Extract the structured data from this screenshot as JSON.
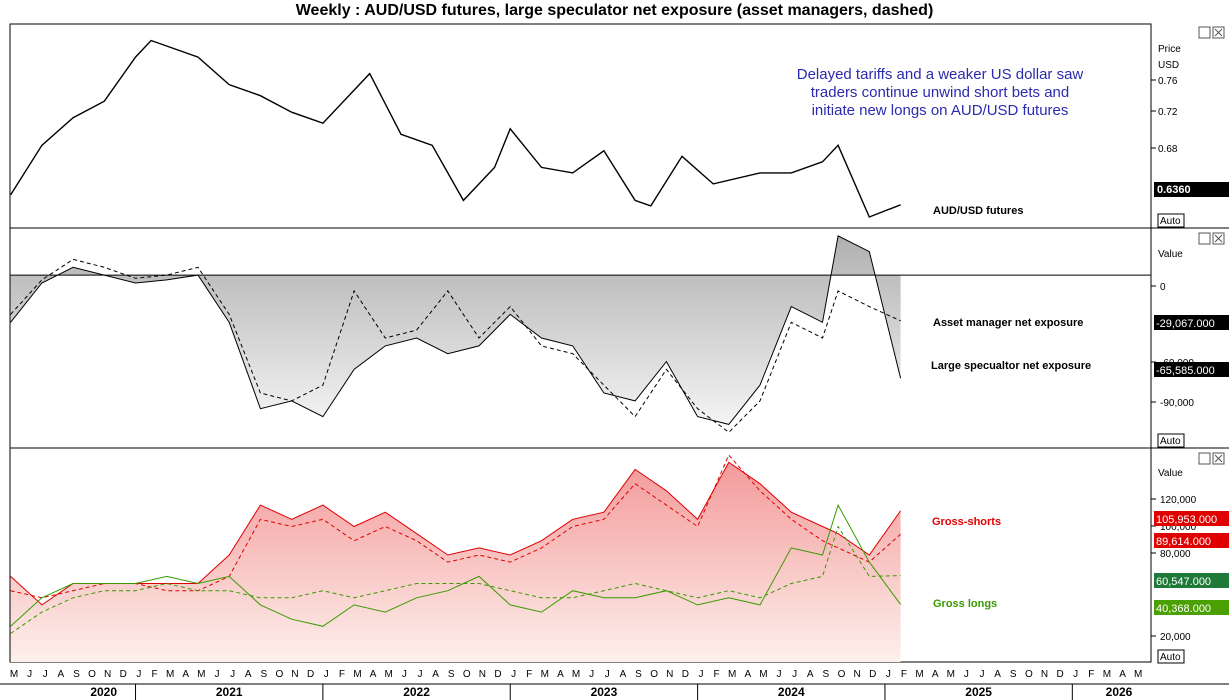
{
  "title": "Weekly : AUD/USD futures, large speculator net exposure (asset managers, dashed)",
  "annotation": [
    "Delayed tariffs and a weaker US dollar saw",
    "traders continue unwind short bets and",
    "initiate new longs on AUD/USD futures"
  ],
  "colors": {
    "annotation": "#2b2bb0",
    "shorts": "#e00000",
    "longs": "#3a9a00",
    "net_fill": "#bdbdbd",
    "price": "#000000"
  },
  "x_axis": {
    "months": [
      "M",
      "J",
      "J",
      "A",
      "S",
      "O",
      "N",
      "D",
      "J",
      "F",
      "M",
      "A",
      "M",
      "J",
      "J",
      "A",
      "S",
      "O",
      "N",
      "D",
      "J",
      "F",
      "M",
      "A",
      "M",
      "J",
      "J",
      "A",
      "S",
      "O",
      "N",
      "D",
      "J",
      "F",
      "M",
      "A",
      "M",
      "J",
      "J",
      "A",
      "S",
      "O",
      "N",
      "D",
      "J",
      "F",
      "M",
      "A",
      "M",
      "J",
      "J",
      "A",
      "S",
      "O",
      "N",
      "D",
      "J",
      "F",
      "M",
      "A",
      "M",
      "J",
      "J",
      "A",
      "S",
      "O",
      "N",
      "D",
      "J",
      "F",
      "M",
      "A",
      "M"
    ],
    "years": [
      "2020",
      "2021",
      "2022",
      "2023",
      "2024",
      "2025",
      "2026"
    ]
  },
  "panels": {
    "price": {
      "axis_title": [
        "Price",
        "USD"
      ],
      "ticks": [
        "0.76",
        "0.72",
        "0.68"
      ],
      "last_value": "0.6360",
      "series_label": "AUD/USD futures",
      "auto": "Auto"
    },
    "net": {
      "axis_title": "Value",
      "ticks": [
        "0",
        "-60,000",
        "-90,000"
      ],
      "labels": [
        "Asset manager net exposure",
        "Large specualtor net exposure"
      ],
      "values": [
        "-29,067.000",
        "-65,585.000"
      ],
      "auto": "Auto"
    },
    "gross": {
      "axis_title": "Value",
      "ticks": [
        "120,000",
        "100,000",
        "80,000",
        "20,000"
      ],
      "labels": [
        "Gross-shorts",
        "Gross longs"
      ],
      "values": [
        "105,953.000",
        "89,614.000",
        "60,547.000",
        "40,368.000"
      ],
      "auto": "Auto"
    }
  },
  "chart_data": [
    {
      "type": "line",
      "title": "AUD/USD futures",
      "ylabel": "Price USD",
      "ylim": [
        0.615,
        0.8
      ],
      "x": [
        "2020-05",
        "2020-07",
        "2020-09",
        "2020-11",
        "2021-01",
        "2021-02",
        "2021-05",
        "2021-07",
        "2021-09",
        "2021-11",
        "2022-01",
        "2022-04",
        "2022-06",
        "2022-08",
        "2022-10",
        "2022-12",
        "2023-01",
        "2023-03",
        "2023-05",
        "2023-07",
        "2023-09",
        "2023-10",
        "2023-12",
        "2024-02",
        "2024-05",
        "2024-07",
        "2024-09",
        "2024-10",
        "2024-12",
        "2025-02"
      ],
      "series": [
        {
          "values": [
            0.645,
            0.69,
            0.715,
            0.73,
            0.77,
            0.785,
            0.77,
            0.745,
            0.735,
            0.72,
            0.71,
            0.755,
            0.7,
            0.69,
            0.64,
            0.67,
            0.705,
            0.67,
            0.665,
            0.685,
            0.64,
            0.635,
            0.68,
            0.655,
            0.665,
            0.665,
            0.675,
            0.69,
            0.625,
            0.636
          ]
        }
      ]
    },
    {
      "type": "area",
      "title": "Large speculator net exposure (asset managers, dashed)",
      "ylim": [
        -110000,
        30000
      ],
      "x": [
        "2020-05",
        "2020-07",
        "2020-09",
        "2020-11",
        "2021-01",
        "2021-03",
        "2021-05",
        "2021-07",
        "2021-09",
        "2021-11",
        "2022-01",
        "2022-03",
        "2022-05",
        "2022-07",
        "2022-09",
        "2022-11",
        "2023-01",
        "2023-03",
        "2023-05",
        "2023-07",
        "2023-09",
        "2023-11",
        "2024-01",
        "2024-03",
        "2024-05",
        "2024-07",
        "2024-09",
        "2024-10",
        "2024-12",
        "2025-02"
      ],
      "series": [
        {
          "name": "Large specualtor net exposure",
          "values": [
            -30000,
            -5000,
            5000,
            0,
            -5000,
            -3000,
            0,
            -30000,
            -85000,
            -80000,
            -90000,
            -60000,
            -45000,
            -40000,
            -50000,
            -45000,
            -25000,
            -40000,
            -45000,
            -75000,
            -80000,
            -55000,
            -90000,
            -95000,
            -70000,
            -20000,
            -30000,
            25000,
            15000,
            -65585
          ]
        },
        {
          "name": "Asset manager net exposure",
          "values": [
            -25000,
            -3000,
            10000,
            5000,
            -2000,
            0,
            5000,
            -25000,
            -75000,
            -80000,
            -70000,
            -10000,
            -40000,
            -35000,
            -10000,
            -40000,
            -20000,
            -45000,
            -50000,
            -70000,
            -90000,
            -60000,
            -85000,
            -100000,
            -80000,
            -30000,
            -40000,
            -10000,
            -20000,
            -29067
          ]
        }
      ]
    },
    {
      "type": "line",
      "title": "Gross shorts and gross longs",
      "ylim": [
        0,
        150000
      ],
      "x": [
        "2020-05",
        "2020-07",
        "2020-09",
        "2020-11",
        "2021-01",
        "2021-03",
        "2021-05",
        "2021-07",
        "2021-09",
        "2021-11",
        "2022-01",
        "2022-03",
        "2022-05",
        "2022-07",
        "2022-09",
        "2022-11",
        "2023-01",
        "2023-03",
        "2023-05",
        "2023-07",
        "2023-09",
        "2023-11",
        "2024-01",
        "2024-03",
        "2024-05",
        "2024-07",
        "2024-09",
        "2024-10",
        "2024-12",
        "2025-02"
      ],
      "series": [
        {
          "name": "Gross-shorts",
          "values": [
            60000,
            40000,
            55000,
            55000,
            55000,
            55000,
            55000,
            75000,
            110000,
            100000,
            110000,
            95000,
            105000,
            90000,
            75000,
            80000,
            75000,
            85000,
            100000,
            105000,
            135000,
            120000,
            100000,
            140000,
            125000,
            105000,
            95000,
            90000,
            75000,
            105953
          ]
        },
        {
          "name": "Gross longs",
          "values": [
            25000,
            45000,
            55000,
            55000,
            55000,
            60000,
            55000,
            60000,
            40000,
            30000,
            25000,
            40000,
            35000,
            45000,
            50000,
            60000,
            40000,
            35000,
            50000,
            45000,
            45000,
            50000,
            40000,
            45000,
            40000,
            80000,
            75000,
            110000,
            70000,
            40368
          ]
        },
        {
          "name": "",
          "values": [
            50000,
            45000,
            50000,
            55000,
            55000,
            50000,
            50000,
            60000,
            100000,
            95000,
            100000,
            85000,
            95000,
            85000,
            70000,
            75000,
            70000,
            80000,
            95000,
            100000,
            125000,
            110000,
            95000,
            145000,
            120000,
            100000,
            85000,
            80000,
            70000,
            89614
          ]
        },
        {
          "name": "",
          "values": [
            20000,
            35000,
            45000,
            50000,
            50000,
            55000,
            50000,
            50000,
            45000,
            45000,
            50000,
            45000,
            50000,
            55000,
            55000,
            55000,
            50000,
            45000,
            45000,
            50000,
            55000,
            50000,
            45000,
            50000,
            45000,
            55000,
            60000,
            95000,
            60000,
            60547
          ]
        }
      ]
    }
  ]
}
